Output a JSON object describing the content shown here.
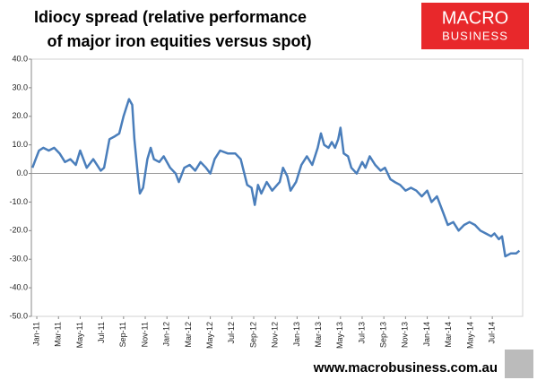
{
  "chart_data": {
    "type": "line",
    "title": [
      "Idiocy spread (relative performance",
      "of major iron equities versus spot)"
    ],
    "logo": [
      "MACRO",
      "BUSINESS"
    ],
    "footer": "www.macrobusiness.com.au",
    "x": [
      -0.4,
      -0.1,
      0.2,
      0.6,
      1.1,
      1.6,
      2.1,
      2.6,
      3.1,
      3.6,
      4.0,
      4.6,
      5.2,
      5.9,
      6.2,
      6.7,
      7.2,
      7.6,
      8.0,
      8.5,
      8.8,
      9.0,
      9.3,
      9.5,
      9.8,
      10.2,
      10.5,
      10.8,
      11.3,
      11.7,
      12.3,
      12.8,
      13.1,
      13.6,
      14.1,
      14.6,
      15.1,
      15.6,
      16.0,
      16.4,
      16.9,
      17.6,
      18.3,
      18.8,
      19.4,
      19.8,
      20.1,
      20.4,
      20.7,
      21.2,
      21.7,
      22.4,
      22.7,
      23.1,
      23.4,
      23.9,
      24.4,
      24.9,
      25.4,
      25.9,
      26.2,
      26.5,
      26.9,
      27.2,
      27.5,
      27.8,
      28.0,
      28.3,
      28.7,
      29.0,
      29.5,
      30.0,
      30.3,
      30.7,
      31.2,
      31.7,
      32.1,
      32.6,
      33.0,
      33.5,
      34.0,
      34.5,
      35.0,
      35.5,
      36.0,
      36.4,
      36.9,
      37.4,
      37.9,
      38.4,
      38.9,
      39.4,
      39.9,
      40.4,
      40.9,
      41.4,
      41.9,
      42.2,
      42.6,
      42.9,
      43.2,
      43.7,
      44.2,
      44.5
    ],
    "series": [
      {
        "name": "Idiocy spread",
        "color": "#4a7ebb",
        "values": [
          2,
          5,
          8,
          9,
          8,
          9,
          7,
          4,
          5,
          3,
          8,
          2,
          5,
          1,
          2,
          12,
          13,
          14,
          20,
          26,
          24,
          12,
          0,
          -7,
          -5,
          5,
          9,
          5,
          4,
          6,
          2,
          0,
          -3,
          2,
          3,
          1,
          4,
          2,
          0,
          5,
          8,
          7,
          7,
          5,
          -4,
          -5,
          -11,
          -4,
          -7,
          -3,
          -6,
          -3,
          2,
          -1,
          -6,
          -3,
          3,
          6,
          3,
          9,
          14,
          10,
          9,
          11,
          9,
          12,
          16,
          7,
          6,
          2,
          0,
          4,
          2,
          6,
          3,
          1,
          2,
          -2,
          -3,
          -4,
          -6,
          -5,
          -6,
          -8,
          -6,
          -10,
          -8,
          -13,
          -18,
          -17,
          -20,
          -18,
          -17,
          -18,
          -20,
          -21,
          -22,
          -21,
          -23,
          -22,
          -29,
          -28,
          -28,
          -27
        ]
      }
    ],
    "xlim": [
      -0.5,
      44.8
    ],
    "xticks": [
      {
        "value": 0,
        "label": "Jan-11"
      },
      {
        "value": 2,
        "label": "Mar-11"
      },
      {
        "value": 4,
        "label": "May-11"
      },
      {
        "value": 6,
        "label": "Jul-11"
      },
      {
        "value": 8,
        "label": "Sep-11"
      },
      {
        "value": 10,
        "label": "Nov-11"
      },
      {
        "value": 12,
        "label": "Jan-12"
      },
      {
        "value": 14,
        "label": "Mar-12"
      },
      {
        "value": 16,
        "label": "May-12"
      },
      {
        "value": 18,
        "label": "Jul-12"
      },
      {
        "value": 20,
        "label": "Sep-12"
      },
      {
        "value": 22,
        "label": "Nov-12"
      },
      {
        "value": 24,
        "label": "Jan-13"
      },
      {
        "value": 26,
        "label": "Mar-13"
      },
      {
        "value": 28,
        "label": "May-13"
      },
      {
        "value": 30,
        "label": "Jul-13"
      },
      {
        "value": 32,
        "label": "Sep-13"
      },
      {
        "value": 34,
        "label": "Nov-13"
      },
      {
        "value": 36,
        "label": "Jan-14"
      },
      {
        "value": 38,
        "label": "Mar-14"
      },
      {
        "value": 40,
        "label": "May-14"
      },
      {
        "value": 42,
        "label": "Jul-14"
      }
    ],
    "ylim": [
      -50,
      40
    ],
    "yticks": [
      {
        "value": 40,
        "label": "40.0"
      },
      {
        "value": 30,
        "label": "30.0"
      },
      {
        "value": 20,
        "label": "20.0"
      },
      {
        "value": 10,
        "label": "10.0"
      },
      {
        "value": 0,
        "label": "0.0"
      },
      {
        "value": -10,
        "label": "-10.0"
      },
      {
        "value": -20,
        "label": "-20.0"
      },
      {
        "value": -30,
        "label": "-30.0"
      },
      {
        "value": -40,
        "label": "-40.0"
      },
      {
        "value": -50,
        "label": "-50.0"
      }
    ]
  }
}
